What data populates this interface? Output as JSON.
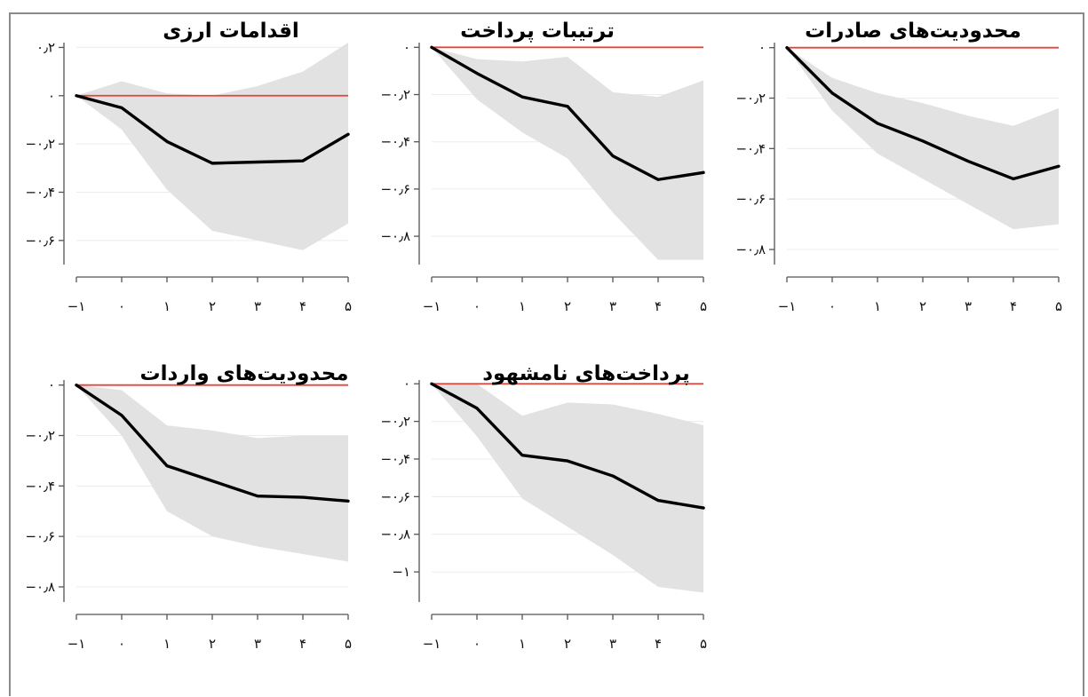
{
  "colors": {
    "band": "#e2e2e2",
    "line": "#000000",
    "zero": "#e8433a",
    "axis": "#555555",
    "grid": "#ececec"
  },
  "chart_data": [
    {
      "type": "line",
      "title": "محدودیت‌های صادرات",
      "x": [
        -1,
        0,
        1,
        2,
        3,
        4,
        5
      ],
      "x_tick_labels": [
        "−۱",
        "۰",
        "۱",
        "۲",
        "۳",
        "۴",
        "۵"
      ],
      "ylim": [
        -0.86,
        0.02
      ],
      "y_ticks": [
        0,
        -0.2,
        -0.4,
        -0.6,
        -0.8
      ],
      "y_tick_labels": [
        "۰",
        "−۰٫۲",
        "−۰٫۴",
        "−۰٫۶",
        "−۰٫۸"
      ],
      "series": [
        {
          "role": "estimate",
          "values": [
            0,
            -0.18,
            -0.3,
            -0.37,
            -0.45,
            -0.52,
            -0.47
          ]
        },
        {
          "role": "upper",
          "values": [
            0,
            -0.12,
            -0.18,
            -0.22,
            -0.27,
            -0.31,
            -0.24
          ]
        },
        {
          "role": "lower",
          "values": [
            0,
            -0.25,
            -0.42,
            -0.52,
            -0.62,
            -0.72,
            -0.7
          ]
        }
      ]
    },
    {
      "type": "line",
      "title": "ترتیبات پرداخت",
      "x": [
        -1,
        0,
        1,
        2,
        3,
        4,
        5
      ],
      "x_tick_labels": [
        "−۱",
        "۰",
        "۱",
        "۲",
        "۳",
        "۴",
        "۵"
      ],
      "ylim": [
        -0.92,
        0.02
      ],
      "y_ticks": [
        0,
        -0.2,
        -0.4,
        -0.6,
        -0.8
      ],
      "y_tick_labels": [
        "۰",
        "−۰٫۲",
        "−۰٫۴",
        "−۰٫۶",
        "−۰٫۸"
      ],
      "series": [
        {
          "role": "estimate",
          "values": [
            0,
            -0.11,
            -0.21,
            -0.25,
            -0.46,
            -0.56,
            -0.53
          ]
        },
        {
          "role": "upper",
          "values": [
            0,
            -0.05,
            -0.06,
            -0.04,
            -0.19,
            -0.21,
            -0.14
          ]
        },
        {
          "role": "lower",
          "values": [
            0,
            -0.22,
            -0.36,
            -0.47,
            -0.7,
            -0.9,
            -0.9
          ]
        }
      ]
    },
    {
      "type": "line",
      "title": "اقدامات ارزی",
      "x": [
        -1,
        0,
        1,
        2,
        3,
        4,
        5
      ],
      "x_tick_labels": [
        "−۱",
        "۰",
        "۱",
        "۲",
        "۳",
        "۴",
        "۵"
      ],
      "ylim": [
        -0.7,
        0.22
      ],
      "y_ticks": [
        0.2,
        0,
        -0.2,
        -0.4,
        -0.6
      ],
      "y_tick_labels": [
        "۰٫۲",
        "۰",
        "−۰٫۲",
        "−۰٫۴",
        "−۰٫۶"
      ],
      "series": [
        {
          "role": "estimate",
          "values": [
            0,
            -0.05,
            -0.19,
            -0.28,
            -0.275,
            -0.27,
            -0.16
          ]
        },
        {
          "role": "upper",
          "values": [
            0,
            0.06,
            0.01,
            0.0,
            0.04,
            0.1,
            0.22
          ]
        },
        {
          "role": "lower",
          "values": [
            0,
            -0.14,
            -0.39,
            -0.56,
            -0.6,
            -0.64,
            -0.53
          ]
        }
      ]
    },
    {
      "type": "line",
      "title": "محدودیت‌های واردات",
      "x": [
        -1,
        0,
        1,
        2,
        3,
        4,
        5
      ],
      "x_tick_labels": [
        "−۱",
        "۰",
        "۱",
        "۲",
        "۳",
        "۴",
        "۵"
      ],
      "ylim": [
        -0.86,
        0.02
      ],
      "y_ticks": [
        0,
        -0.2,
        -0.4,
        -0.6,
        -0.8
      ],
      "y_tick_labels": [
        "۰",
        "−۰٫۲",
        "−۰٫۴",
        "−۰٫۶",
        "−۰٫۸"
      ],
      "series": [
        {
          "role": "estimate",
          "values": [
            0,
            -0.12,
            -0.32,
            -0.38,
            -0.44,
            -0.445,
            -0.46
          ]
        },
        {
          "role": "upper",
          "values": [
            0,
            -0.02,
            -0.16,
            -0.18,
            -0.21,
            -0.2,
            -0.2
          ]
        },
        {
          "role": "lower",
          "values": [
            0,
            -0.2,
            -0.5,
            -0.6,
            -0.64,
            -0.67,
            -0.7
          ]
        }
      ]
    },
    {
      "type": "line",
      "title": "پرداخت‌های نامشهود",
      "x": [
        -1,
        0,
        1,
        2,
        3,
        4,
        5
      ],
      "x_tick_labels": [
        "−۱",
        "۰",
        "۱",
        "۲",
        "۳",
        "۴",
        "۵"
      ],
      "ylim": [
        -1.16,
        0.02
      ],
      "y_ticks": [
        0,
        -0.2,
        -0.4,
        -0.6,
        -0.8,
        -1.0
      ],
      "y_tick_labels": [
        "۰",
        "−۰٫۲",
        "−۰٫۴",
        "−۰٫۶",
        "−۰٫۸",
        "−۱"
      ],
      "series": [
        {
          "role": "estimate",
          "values": [
            0,
            -0.13,
            -0.38,
            -0.41,
            -0.49,
            -0.62,
            -0.66
          ]
        },
        {
          "role": "upper",
          "values": [
            0,
            0.0,
            -0.17,
            -0.1,
            -0.11,
            -0.16,
            -0.22
          ]
        },
        {
          "role": "lower",
          "values": [
            0,
            -0.28,
            -0.61,
            -0.76,
            -0.91,
            -1.08,
            -1.11
          ]
        }
      ]
    }
  ]
}
